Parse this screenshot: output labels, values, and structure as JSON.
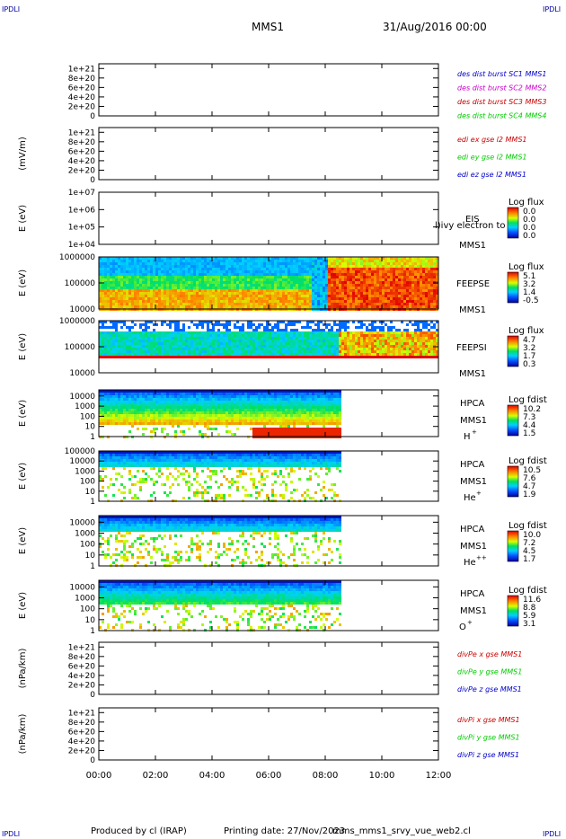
{
  "header": {
    "corner_tl": "IPDLI",
    "corner_tr": "IPDLI",
    "corner_bl": "IPDLI",
    "corner_br": "IPDLI",
    "spacecraft": "MMS1",
    "date": "31/Aug/2016 00:00"
  },
  "footer": {
    "produced_by": "Produced by cl (IRAP)",
    "printing_date": "Printing date: 27/Nov/2023",
    "script": "mms_mms1_srvy_vue_web2.cl"
  },
  "colors": {
    "mms1": "#0000cc",
    "mms2": "#cc00cc",
    "mms3": "#cc0000",
    "mms4": "#00cc00",
    "x_component": "#ff0000",
    "y_component": "#00cc00",
    "z_component": "#0000cc"
  },
  "chart_data": [
    {
      "type": "line",
      "panel": "des-dist",
      "ylabel": "",
      "yticks": [
        "0",
        "2e+20",
        "4e+20",
        "6e+20",
        "8e+20",
        "1e+21"
      ],
      "ylim": [
        0,
        1.1e+21
      ],
      "series": [
        {
          "name": "des dist burst SC1 MMS1",
          "color": "#0000cc",
          "x": [],
          "values": []
        },
        {
          "name": "des dist burst SC2 MMS2",
          "color": "#cc00cc",
          "x": [],
          "values": []
        },
        {
          "name": "des dist burst SC3 MMS3",
          "color": "#cc0000",
          "x": [],
          "values": []
        },
        {
          "name": "des dist burst SC4 MMS4",
          "color": "#00cc00",
          "x": [],
          "values": []
        }
      ]
    },
    {
      "type": "line",
      "panel": "edi-e",
      "ylabel": "(mV/m)",
      "yticks": [
        "0",
        "2e+20",
        "4e+20",
        "6e+20",
        "8e+20",
        "1e+21"
      ],
      "ylim": [
        0,
        1.1e+21
      ],
      "series": [
        {
          "name": "edi ex gse l2 MMS1",
          "color": "#cc0000",
          "x": [],
          "values": []
        },
        {
          "name": "edi ey gse l2 MMS1",
          "color": "#00cc00",
          "x": [],
          "values": []
        },
        {
          "name": "edi ez gse l2 MMS1",
          "color": "#0000cc",
          "x": [],
          "values": []
        }
      ]
    },
    {
      "type": "heatmap",
      "panel": "eis",
      "ylabel": "E (eV)",
      "yscale": "log",
      "yticks": [
        "1e+04",
        "1e+05",
        "1e+06",
        "1e+07"
      ],
      "ylim": [
        10000,
        10000000
      ],
      "labels": [
        "EIS",
        "MMS1"
      ],
      "overlay_text": "l)ivy electron to",
      "colorbar": {
        "title": "Log flux",
        "ticks": [
          "0.0",
          "0.0",
          "0.0",
          "0.0"
        ]
      },
      "data_extent_hours": [
        0,
        0
      ]
    },
    {
      "type": "heatmap",
      "panel": "feeps-e",
      "ylabel": "E (eV)",
      "yscale": "log",
      "yticks": [
        "10000",
        "100000",
        "1000000"
      ],
      "ylim": [
        10000,
        1000000
      ],
      "labels": [
        "FEEPSE",
        "MMS1"
      ],
      "colorbar": {
        "title": "Log flux",
        "ticks": [
          "5.1",
          "3.2",
          "1.4",
          "-0.5"
        ]
      },
      "data_extent_hours": [
        0,
        12
      ]
    },
    {
      "type": "heatmap",
      "panel": "feeps-i",
      "ylabel": "E (eV)",
      "yscale": "log",
      "yticks": [
        "10000",
        "100000",
        "1000000"
      ],
      "ylim": [
        10000,
        1000000
      ],
      "labels": [
        "FEEPSI",
        "MMS1"
      ],
      "colorbar": {
        "title": "Log flux",
        "ticks": [
          "4.7",
          "3.2",
          "1.7",
          "0.3"
        ]
      },
      "data_extent_hours": [
        0,
        12
      ]
    },
    {
      "type": "heatmap",
      "panel": "hpca-h",
      "ylabel": "E (eV)",
      "yscale": "log",
      "yticks": [
        "1",
        "10",
        "100",
        "1000",
        "10000"
      ],
      "ylim": [
        1,
        40000
      ],
      "labels": [
        "HPCA",
        "MMS1"
      ],
      "species": "H",
      "charge": "+",
      "colorbar": {
        "title": "Log fdist",
        "ticks": [
          "10.2",
          "7.3",
          "4.4",
          "1.5"
        ]
      },
      "data_extent_hours": [
        0,
        8.5
      ]
    },
    {
      "type": "heatmap",
      "panel": "hpca-he1",
      "ylabel": "E (eV)",
      "yscale": "log",
      "yticks": [
        "1",
        "10",
        "100",
        "1000",
        "10000",
        "100000"
      ],
      "ylim": [
        1,
        100000
      ],
      "labels": [
        "HPCA",
        "MMS1"
      ],
      "species": "He",
      "charge": "+",
      "colorbar": {
        "title": "Log fdist",
        "ticks": [
          "10.5",
          "7.6",
          "4.7",
          "1.9"
        ]
      },
      "data_extent_hours": [
        0,
        8.5
      ]
    },
    {
      "type": "heatmap",
      "panel": "hpca-he2",
      "ylabel": "E (eV)",
      "yscale": "log",
      "yticks": [
        "1",
        "10",
        "100",
        "1000",
        "10000"
      ],
      "ylim": [
        1,
        40000
      ],
      "labels": [
        "HPCA",
        "MMS1"
      ],
      "species": "He",
      "charge": "++",
      "colorbar": {
        "title": "Log fdist",
        "ticks": [
          "10.0",
          "7.2",
          "4.5",
          "1.7"
        ]
      },
      "data_extent_hours": [
        0,
        8.5
      ]
    },
    {
      "type": "heatmap",
      "panel": "hpca-o",
      "ylabel": "E (eV)",
      "yscale": "log",
      "yticks": [
        "1",
        "10",
        "100",
        "1000",
        "10000"
      ],
      "ylim": [
        1,
        40000
      ],
      "labels": [
        "HPCA",
        "MMS1"
      ],
      "species": "O",
      "charge": "+",
      "colorbar": {
        "title": "Log fdist",
        "ticks": [
          "11.6",
          "8.8",
          "5.9",
          "3.1"
        ]
      },
      "data_extent_hours": [
        0,
        8.5
      ]
    },
    {
      "type": "line",
      "panel": "divpe",
      "ylabel": "(nPa/km)",
      "yticks": [
        "0",
        "2e+20",
        "4e+20",
        "6e+20",
        "8e+20",
        "1e+21"
      ],
      "ylim": [
        0,
        1.1e+21
      ],
      "series": [
        {
          "name": "divPe x gse MMS1",
          "color": "#cc0000",
          "x": [],
          "values": []
        },
        {
          "name": "divPe y gse MMS1",
          "color": "#00cc00",
          "x": [],
          "values": []
        },
        {
          "name": "divPe z gse MMS1",
          "color": "#0000cc",
          "x": [],
          "values": []
        }
      ]
    },
    {
      "type": "line",
      "panel": "divpi",
      "ylabel": "(nPa/km)",
      "yticks": [
        "0",
        "2e+20",
        "4e+20",
        "6e+20",
        "8e+20",
        "1e+21"
      ],
      "ylim": [
        0,
        1.1e+21
      ],
      "series": [
        {
          "name": "divPi x gse MMS1",
          "color": "#cc0000",
          "x": [],
          "values": []
        },
        {
          "name": "divPi y gse MMS1",
          "color": "#00cc00",
          "x": [],
          "values": []
        },
        {
          "name": "divPi z gse MMS1",
          "color": "#0000cc",
          "x": [],
          "values": []
        }
      ]
    }
  ],
  "time_axis": {
    "ticks": [
      "00:00",
      "02:00",
      "04:00",
      "06:00",
      "08:00",
      "10:00",
      "12:00"
    ],
    "range_hours": [
      0,
      12
    ]
  }
}
